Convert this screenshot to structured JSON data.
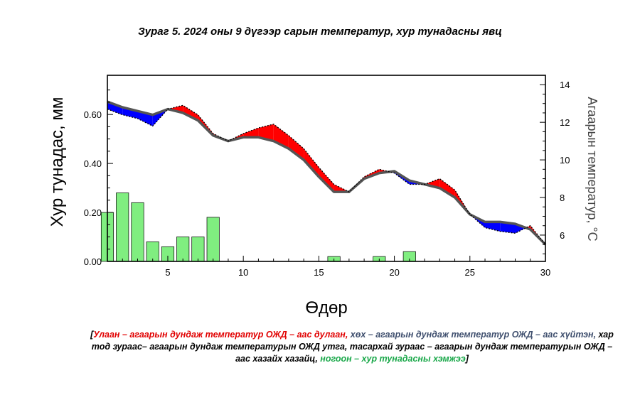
{
  "chart_data": {
    "title": "Зураг 5. 2024 оны 9 дүгээр сарын температур, хур тунадасны явц",
    "type": "bar+line",
    "xlabel": "Өдөр",
    "ylabel_left": "Хур тунадас, мм",
    "ylabel_right": "Агаарын температур, °C",
    "xlim": [
      1,
      30
    ],
    "ylim_left": [
      0,
      0.76
    ],
    "ylim_right": [
      4.6,
      14.5
    ],
    "x_ticks": [
      5,
      10,
      15,
      20,
      25,
      30
    ],
    "y_left_ticks": [
      "0.00",
      "0.20",
      "0.40",
      "0.60"
    ],
    "y_right_ticks": [
      "6",
      "8",
      "10",
      "12",
      "14"
    ],
    "days": [
      1,
      2,
      3,
      4,
      5,
      6,
      7,
      8,
      9,
      10,
      11,
      12,
      13,
      14,
      15,
      16,
      17,
      18,
      19,
      20,
      21,
      22,
      23,
      24,
      25,
      26,
      27,
      28,
      29,
      30
    ],
    "precipitation": [
      0.2,
      0.28,
      0.24,
      0.08,
      0.06,
      0.1,
      0.1,
      0.18,
      0,
      0,
      0,
      0,
      0,
      0,
      0,
      0.02,
      0,
      0,
      0.02,
      0,
      0.04,
      0,
      0,
      0,
      0,
      0,
      0,
      0,
      0,
      0
    ],
    "temperature_norm": [
      13.1,
      12.8,
      12.6,
      12.4,
      12.7,
      12.5,
      12.1,
      11.3,
      11.0,
      11.2,
      11.2,
      11.0,
      10.6,
      10.0,
      9.1,
      8.3,
      8.3,
      9.0,
      9.3,
      9.4,
      8.9,
      8.7,
      8.5,
      8.0,
      7.1,
      6.7,
      6.7,
      6.6,
      6.3,
      5.5
    ],
    "temperature_mean": [
      12.7,
      12.4,
      12.2,
      11.8,
      12.7,
      12.9,
      12.4,
      11.4,
      11.0,
      11.4,
      11.7,
      11.9,
      11.3,
      10.6,
      9.6,
      8.7,
      8.3,
      9.1,
      9.5,
      9.3,
      8.7,
      8.7,
      9.0,
      8.4,
      7.1,
      6.4,
      6.2,
      6.1,
      6.5,
      5.5
    ],
    "series": [
      {
        "name": "Улаан – агаарын дундаж температур ОЖД – аас дулаан",
        "color": "#ff0000"
      },
      {
        "name": "хөх – агаарын дундаж температур ОЖД – аас хүйтэн",
        "color": "#0000ff"
      },
      {
        "name": "хар тод зураас– агаарын дундаж температурын ОЖД утга",
        "color": "#555555"
      },
      {
        "name": "тасархай зураас – агаарын дундаж температурын ОЖД – аас хазайх хазайц",
        "color": "#000000"
      },
      {
        "name": "ногоон – хур тунадасны хэмжээ",
        "color": "#80ee80"
      }
    ]
  },
  "caption": {
    "open": "[",
    "red": "Улаан – агаарын дундаж температур ОЖД – аас дулаан,",
    "slate": " хөх – агаарын дундаж температур ОЖД – аас хүйтэн,",
    "black": " хар тод зураас– агаарын дундаж температурын ОЖД утга, тасархай зураас – агаарын дундаж температурын ОЖД – аас хазайх хазайц,",
    "green": " ногоон – хур тунадасны хэмжээ",
    "close": "]"
  }
}
